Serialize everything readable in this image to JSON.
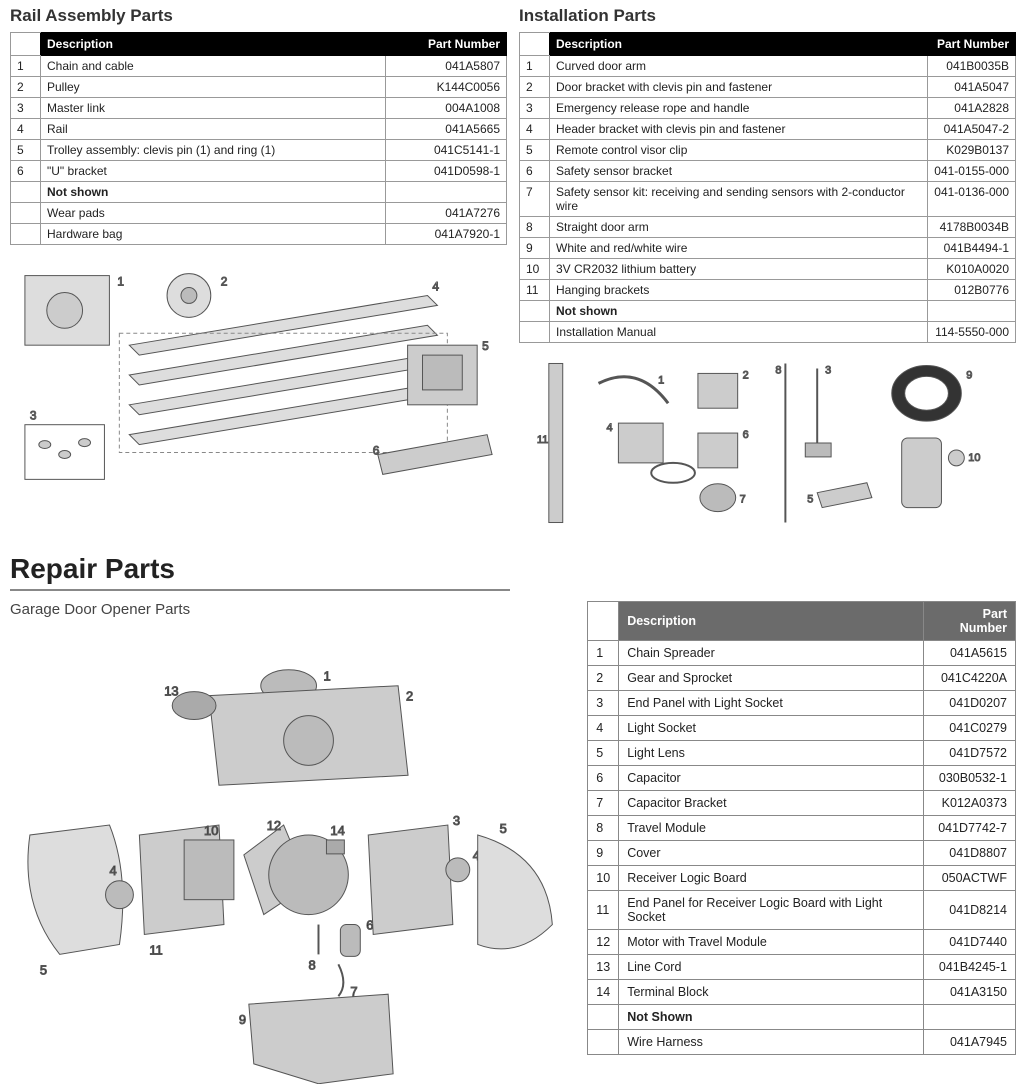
{
  "rail": {
    "title": "Rail Assembly Parts",
    "headers": {
      "num": "",
      "desc": "Description",
      "pn": "Part Number"
    },
    "rows": [
      {
        "n": "1",
        "d": "Chain and cable",
        "p": "041A5807"
      },
      {
        "n": "2",
        "d": "Pulley",
        "p": "K144C0056"
      },
      {
        "n": "3",
        "d": "Master link",
        "p": "004A1008"
      },
      {
        "n": "4",
        "d": "Rail",
        "p": "041A5665"
      },
      {
        "n": "5",
        "d": "Trolley assembly: clevis pin (1) and ring (1)",
        "p": "041C5141-1"
      },
      {
        "n": "6",
        "d": "\"U\" bracket",
        "p": "041D0598-1"
      }
    ],
    "notshown_label": "Not shown",
    "notshown": [
      {
        "d": "Wear pads",
        "p": "041A7276"
      },
      {
        "d": "Hardware bag",
        "p": "041A7920-1"
      }
    ]
  },
  "install": {
    "title": "Installation Parts",
    "headers": {
      "num": "",
      "desc": "Description",
      "pn": "Part Number"
    },
    "rows": [
      {
        "n": "1",
        "d": "Curved door arm",
        "p": "041B0035B"
      },
      {
        "n": "2",
        "d": "Door bracket with clevis pin and fastener",
        "p": "041A5047"
      },
      {
        "n": "3",
        "d": "Emergency release rope and handle",
        "p": "041A2828"
      },
      {
        "n": "4",
        "d": "Header bracket with clevis pin and fastener",
        "p": "041A5047-2"
      },
      {
        "n": "5",
        "d": "Remote control visor clip",
        "p": "K029B0137"
      },
      {
        "n": "6",
        "d": "Safety sensor bracket",
        "p": "041-0155-000"
      },
      {
        "n": "7",
        "d": "Safety sensor kit: receiving and sending sensors with 2-conductor wire",
        "p": "041-0136-000"
      },
      {
        "n": "8",
        "d": "Straight door arm",
        "p": "4178B0034B"
      },
      {
        "n": "9",
        "d": "White and red/white wire",
        "p": "041B4494-1"
      },
      {
        "n": "10",
        "d": "3V CR2032 lithium battery",
        "p": "K010A0020"
      },
      {
        "n": "11",
        "d": "Hanging brackets",
        "p": "012B0776"
      }
    ],
    "notshown_label": "Not shown",
    "notshown": [
      {
        "d": "Installation Manual",
        "p": "114-5550-000"
      }
    ]
  },
  "repair": {
    "title": "Repair Parts",
    "subtitle": "Garage Door Opener Parts",
    "headers": {
      "num": "",
      "desc": "Description",
      "pn": "Part Number"
    },
    "rows": [
      {
        "n": "1",
        "d": "Chain Spreader",
        "p": "041A5615"
      },
      {
        "n": "2",
        "d": "Gear and Sprocket",
        "p": "041C4220A"
      },
      {
        "n": "3",
        "d": "End Panel with Light Socket",
        "p": "041D0207"
      },
      {
        "n": "4",
        "d": "Light Socket",
        "p": "041C0279"
      },
      {
        "n": "5",
        "d": "Light Lens",
        "p": "041D7572"
      },
      {
        "n": "6",
        "d": "Capacitor",
        "p": "030B0532-1"
      },
      {
        "n": "7",
        "d": "Capacitor Bracket",
        "p": "K012A0373"
      },
      {
        "n": "8",
        "d": "Travel Module",
        "p": "041D7742-7"
      },
      {
        "n": "9",
        "d": "Cover",
        "p": "041D8807"
      },
      {
        "n": "10",
        "d": "Receiver Logic Board",
        "p": "050ACTWF"
      },
      {
        "n": "11",
        "d": "End Panel for Receiver Logic Board with Light Socket",
        "p": "041D8214"
      },
      {
        "n": "12",
        "d": "Motor with Travel Module",
        "p": "041D7440"
      },
      {
        "n": "13",
        "d": "Line Cord",
        "p": "041B4245-1"
      },
      {
        "n": "14",
        "d": "Terminal Block",
        "p": "041A3150"
      }
    ],
    "notshown_label": "Not Shown",
    "notshown": [
      {
        "d": "Wire Harness",
        "p": "041A7945"
      }
    ]
  },
  "style": {
    "header_bg_black": "#000000",
    "header_bg_gray": "#6b6b6b",
    "border_color": "#999999",
    "text_color": "#222222",
    "diagram_stroke": "#555555"
  }
}
